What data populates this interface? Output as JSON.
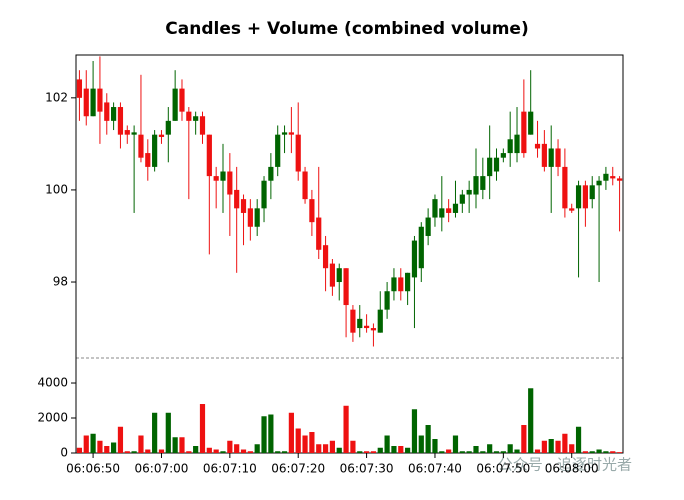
{
  "chart_data": {
    "type": "candlestick",
    "title": "Candles + Volume (combined volume)",
    "watermark": "公众号 · 追逐时光者",
    "x": [
      "06:06:48",
      "06:06:49",
      "06:06:50",
      "06:06:51",
      "06:06:52",
      "06:06:53",
      "06:06:54",
      "06:06:55",
      "06:06:56",
      "06:06:57",
      "06:06:58",
      "06:06:59",
      "06:07:00",
      "06:07:01",
      "06:07:02",
      "06:07:03",
      "06:07:04",
      "06:07:05",
      "06:07:06",
      "06:07:07",
      "06:07:08",
      "06:07:09",
      "06:07:10",
      "06:07:11",
      "06:07:12",
      "06:07:13",
      "06:07:14",
      "06:07:15",
      "06:07:16",
      "06:07:17",
      "06:07:18",
      "06:07:19",
      "06:07:20",
      "06:07:21",
      "06:07:22",
      "06:07:23",
      "06:07:24",
      "06:07:25",
      "06:07:26",
      "06:07:27",
      "06:07:28",
      "06:07:29",
      "06:07:30",
      "06:07:31",
      "06:07:32",
      "06:07:33",
      "06:07:34",
      "06:07:35",
      "06:07:36",
      "06:07:37",
      "06:07:38",
      "06:07:39",
      "06:07:40",
      "06:07:41",
      "06:07:42",
      "06:07:43",
      "06:07:44",
      "06:07:45",
      "06:07:46",
      "06:07:47",
      "06:07:48",
      "06:07:49",
      "06:07:50",
      "06:07:51",
      "06:07:52",
      "06:07:53",
      "06:07:54",
      "06:07:55",
      "06:07:56",
      "06:07:57",
      "06:07:58",
      "06:07:59",
      "06:08:00",
      "06:08:01",
      "06:08:02",
      "06:08:03",
      "06:08:04",
      "06:08:05",
      "06:08:06",
      "06:08:07"
    ],
    "open": [
      102.4,
      102.2,
      101.6,
      102.2,
      101.9,
      101.5,
      101.8,
      101.3,
      101.2,
      101.2,
      100.8,
      100.5,
      101.2,
      101.2,
      101.5,
      102.2,
      101.7,
      101.5,
      101.6,
      101.2,
      100.3,
      100.2,
      100.4,
      100.0,
      99.8,
      99.6,
      99.2,
      99.6,
      100.2,
      100.5,
      101.2,
      101.25,
      101.2,
      100.4,
      99.8,
      99.4,
      98.8,
      98.4,
      98.0,
      98.3,
      97.4,
      97.0,
      97.05,
      97.0,
      96.9,
      97.4,
      97.8,
      98.1,
      97.8,
      98.1,
      98.3,
      99.0,
      99.4,
      99.4,
      99.6,
      99.5,
      99.7,
      99.9,
      99.9,
      100.0,
      100.3,
      100.4,
      100.7,
      100.8,
      100.8,
      101.7,
      101.2,
      101.0,
      101.0,
      100.5,
      100.9,
      100.5,
      99.6,
      99.6,
      100.1,
      99.8,
      100.1,
      100.2,
      100.3,
      100.25
    ],
    "high": [
      102.6,
      102.6,
      102.8,
      102.9,
      102.1,
      101.9,
      101.9,
      101.4,
      101.4,
      102.5,
      101.1,
      101.3,
      101.3,
      101.8,
      102.6,
      102.4,
      101.8,
      101.7,
      101.7,
      101.2,
      100.5,
      101.0,
      100.8,
      100.5,
      99.9,
      99.8,
      99.8,
      100.3,
      100.8,
      101.4,
      101.4,
      101.8,
      101.9,
      100.5,
      100.0,
      100.5,
      99.0,
      98.5,
      98.4,
      98.3,
      97.5,
      97.5,
      97.3,
      97.1,
      97.8,
      98.0,
      98.3,
      98.3,
      98.2,
      99.0,
      99.3,
      99.6,
      99.9,
      100.3,
      99.8,
      100.2,
      100.0,
      100.2,
      100.9,
      100.7,
      101.4,
      100.9,
      100.9,
      101.7,
      101.8,
      102.4,
      102.6,
      101.5,
      101.3,
      101.4,
      101.1,
      100.9,
      99.7,
      100.2,
      100.2,
      100.3,
      100.3,
      100.5,
      100.5,
      100.3
    ],
    "low": [
      101.5,
      101.4,
      101.6,
      101.0,
      101.2,
      101.3,
      100.9,
      101.0,
      99.5,
      100.6,
      100.2,
      100.4,
      101.0,
      100.6,
      101.5,
      101.5,
      99.8,
      101.2,
      101.0,
      98.6,
      99.6,
      99.5,
      99.0,
      98.2,
      98.8,
      98.9,
      99.0,
      99.3,
      99.8,
      100.3,
      100.8,
      100.8,
      100.2,
      99.7,
      99.0,
      98.5,
      97.8,
      97.7,
      97.6,
      96.8,
      96.7,
      96.8,
      96.9,
      96.6,
      96.9,
      97.2,
      97.6,
      97.6,
      97.5,
      97.0,
      98.0,
      98.8,
      99.2,
      99.1,
      99.3,
      99.4,
      99.5,
      99.5,
      99.6,
      99.8,
      99.8,
      100.2,
      100.6,
      100.5,
      100.6,
      100.7,
      101.2,
      100.7,
      100.4,
      99.5,
      100.3,
      99.4,
      99.5,
      98.1,
      99.2,
      99.6,
      98.0,
      100.0,
      100.1,
      99.1
    ],
    "close": [
      102.0,
      101.6,
      102.2,
      101.7,
      101.5,
      101.8,
      101.2,
      101.2,
      101.25,
      100.7,
      100.5,
      101.2,
      101.15,
      101.5,
      102.2,
      101.7,
      101.5,
      101.6,
      101.2,
      100.3,
      100.2,
      100.4,
      99.9,
      99.6,
      99.5,
      99.2,
      99.6,
      100.2,
      100.5,
      101.2,
      101.25,
      101.2,
      100.4,
      99.8,
      99.3,
      98.7,
      98.3,
      97.9,
      98.3,
      97.5,
      96.9,
      97.2,
      97.0,
      96.95,
      97.4,
      97.8,
      98.1,
      97.8,
      98.2,
      98.9,
      99.2,
      99.4,
      99.8,
      99.6,
      99.5,
      99.7,
      99.9,
      100.0,
      100.3,
      100.3,
      100.7,
      100.7,
      100.8,
      101.1,
      101.2,
      100.8,
      101.7,
      100.9,
      100.5,
      100.9,
      100.5,
      99.6,
      99.55,
      100.1,
      99.6,
      100.1,
      100.2,
      100.35,
      100.25,
      100.2
    ],
    "volume": [
      300,
      1000,
      1100,
      700,
      400,
      600,
      1500,
      100,
      100,
      1000,
      200,
      2300,
      200,
      2300,
      900,
      900,
      100,
      400,
      2800,
      300,
      200,
      100,
      700,
      500,
      200,
      100,
      500,
      2100,
      2200,
      100,
      100,
      2300,
      1400,
      1000,
      1200,
      500,
      500,
      700,
      300,
      2700,
      700,
      100,
      100,
      100,
      300,
      1000,
      400,
      400,
      300,
      2500,
      1000,
      1600,
      800,
      100,
      200,
      1000,
      100,
      100,
      400,
      100,
      500,
      100,
      100,
      500,
      200,
      1600,
      3700,
      200,
      700,
      800,
      700,
      1100,
      500,
      1500,
      100,
      100,
      200,
      100,
      100,
      50
    ],
    "up_color": "#006400",
    "down_color": "#ee1111",
    "ylim": [
      96.35,
      102.93
    ],
    "yticks": [
      98,
      100,
      102
    ],
    "volume_ylim": [
      0,
      5430
    ],
    "volume_yticks": [
      0,
      2000,
      4000
    ],
    "xticks": [
      "06:06:50",
      "06:07:00",
      "06:07:10",
      "06:07:20",
      "06:07:30",
      "06:07:40",
      "06:07:50",
      "06:08:00"
    ]
  }
}
